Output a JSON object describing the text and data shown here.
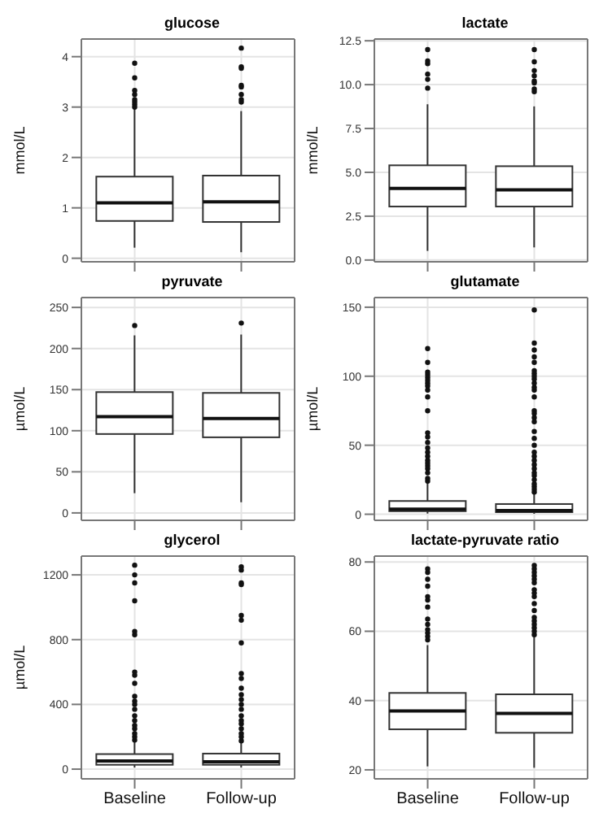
{
  "chart_data": [
    {
      "type": "box",
      "title": "glucose",
      "ylabel": "mmol/L",
      "categories": [
        null,
        null
      ],
      "ylim": [
        -0.07,
        4.35
      ],
      "yticks": [
        0,
        1,
        2,
        3,
        4
      ],
      "grid": true,
      "tick_labels": "y",
      "boxes": [
        {
          "low": 0.21,
          "q1": 0.74,
          "median": 1.1,
          "q3": 1.62,
          "high": 2.99,
          "outliers": [
            3.0,
            3.05,
            3.1,
            3.15,
            3.25,
            3.33,
            3.58,
            3.87
          ]
        },
        {
          "low": 0.12,
          "q1": 0.72,
          "median": 1.12,
          "q3": 1.64,
          "high": 2.92,
          "outliers": [
            3.1,
            3.15,
            3.25,
            3.4,
            3.43,
            3.77,
            3.8,
            4.17
          ]
        }
      ]
    },
    {
      "type": "box",
      "title": "lactate",
      "ylabel": "mmol/L",
      "categories": [
        null,
        null
      ],
      "ylim": [
        -0.1,
        12.6
      ],
      "yticks": [
        {
          "value": 0,
          "label": "0.0"
        },
        {
          "value": 2.5,
          "label": "2.5"
        },
        {
          "value": 5,
          "label": "5.0"
        },
        {
          "value": 7.5,
          "label": "7.5"
        },
        {
          "value": 10,
          "label": "10.0"
        },
        {
          "value": 12.5,
          "label": "12.5"
        }
      ],
      "grid": true,
      "tick_labels": "y",
      "boxes": [
        {
          "low": 0.52,
          "q1": 3.05,
          "median": 4.08,
          "q3": 5.4,
          "high": 8.88,
          "outliers": [
            9.8,
            10.3,
            10.6,
            11.2,
            11.35,
            12.0
          ]
        },
        {
          "low": 0.72,
          "q1": 3.05,
          "median": 4.0,
          "q3": 5.35,
          "high": 8.76,
          "outliers": [
            9.6,
            9.75,
            10.1,
            10.2,
            10.5,
            10.8,
            11.3,
            12.0
          ]
        }
      ]
    },
    {
      "type": "box",
      "title": "pyruvate",
      "ylabel": "µmol/L",
      "categories": [
        null,
        null
      ],
      "ylim": [
        -9,
        262
      ],
      "yticks": [
        0,
        50,
        100,
        150,
        200,
        250
      ],
      "grid": true,
      "tick_labels": "y",
      "boxes": [
        {
          "low": 24,
          "q1": 96,
          "median": 117,
          "q3": 147,
          "high": 216,
          "outliers": [
            228
          ]
        },
        {
          "low": 13,
          "q1": 92,
          "median": 115,
          "q3": 146,
          "high": 217,
          "outliers": [
            231
          ]
        }
      ]
    },
    {
      "type": "box",
      "title": "glutamate",
      "ylabel": "µmol/L",
      "categories": [
        null,
        null
      ],
      "ylim": [
        -4.4,
        157
      ],
      "yticks": [
        0,
        50,
        100,
        150
      ],
      "grid": true,
      "tick_labels": "y",
      "boxes": [
        {
          "low": 0.5,
          "q1": 2.2,
          "median": 3.7,
          "q3": 9.6,
          "high": 23,
          "outliers": [
            24,
            26,
            30,
            33,
            35,
            37,
            39,
            42,
            45,
            48,
            52,
            56,
            59,
            75,
            85,
            90,
            93,
            95,
            97,
            99,
            101,
            103,
            110,
            120
          ]
        },
        {
          "low": 0.3,
          "q1": 1.5,
          "median": 2.6,
          "q3": 7.4,
          "high": 15,
          "outliers": [
            16,
            18,
            20,
            22,
            25,
            28,
            30,
            33,
            36,
            39,
            42,
            45,
            50,
            55,
            60,
            67,
            70,
            73,
            75,
            85,
            90,
            92,
            95,
            98,
            100,
            102,
            104,
            110,
            114,
            119,
            124,
            148
          ]
        }
      ]
    },
    {
      "type": "box",
      "title": "glycerol",
      "ylabel": "µmol/L",
      "categories": [
        "Baseline",
        "Follow-up"
      ],
      "ylim": [
        -60,
        1316
      ],
      "yticks": [
        0,
        400,
        800,
        1200
      ],
      "grid": true,
      "boxes": [
        {
          "low": 10,
          "q1": 27,
          "median": 50,
          "q3": 93,
          "high": 172,
          "outliers": [
            180,
            200,
            220,
            250,
            270,
            300,
            330,
            370,
            400,
            420,
            450,
            530,
            580,
            600,
            830,
            850,
            1040,
            1150,
            1200,
            1260
          ]
        },
        {
          "low": 10,
          "q1": 27,
          "median": 46,
          "q3": 96,
          "high": 165,
          "outliers": [
            175,
            200,
            220,
            250,
            280,
            300,
            330,
            370,
            400,
            430,
            460,
            500,
            560,
            590,
            780,
            920,
            950,
            1140,
            1150,
            1230,
            1250
          ]
        }
      ]
    },
    {
      "type": "box",
      "title": "lactate-pyruvate ratio",
      "categories": [
        "Baseline",
        "Follow-up"
      ],
      "ylim": [
        17.4,
        81.7
      ],
      "yticks": [
        20,
        40,
        60,
        80
      ],
      "grid": true,
      "boxes": [
        {
          "low": 21,
          "q1": 31.7,
          "median": 37,
          "q3": 42.2,
          "high": 56,
          "outliers": [
            57.5,
            58.5,
            59.5,
            60.5,
            62,
            63.5,
            67,
            69,
            70,
            73,
            75,
            77,
            78
          ]
        },
        {
          "low": 20.6,
          "q1": 30.7,
          "median": 36.3,
          "q3": 41.8,
          "high": 58.4,
          "outliers": [
            59,
            60,
            61,
            62,
            63,
            64,
            66,
            68,
            70,
            71,
            72,
            74,
            75,
            76,
            77,
            78,
            79
          ]
        }
      ]
    }
  ]
}
